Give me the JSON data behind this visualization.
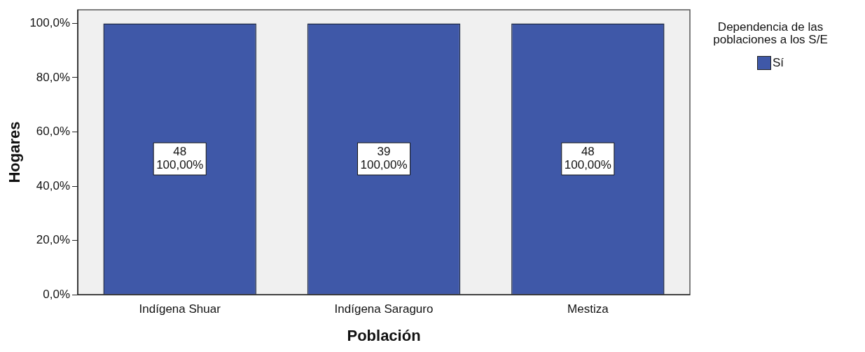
{
  "chart_data": {
    "type": "bar",
    "xlabel": "Población",
    "ylabel": "Hogares",
    "legend_title": "Dependencia de las poblaciones a los S/E",
    "legend": "top right",
    "categories": [
      "Indígena Shuar",
      "Indígena Saraguro",
      "Mestiza"
    ],
    "series": [
      {
        "name": "Sí",
        "color": "#3f58a8",
        "values": [
          100,
          100,
          100
        ],
        "value_labels": [
          "100,00%",
          "100,00%",
          "100,00%"
        ]
      }
    ],
    "annotations": [
      "48",
      "39",
      "48"
    ],
    "ylim": [
      0,
      105
    ],
    "yticks": [
      {
        "value": 0,
        "label": "0,0%"
      },
      {
        "value": 20,
        "label": "20,0%"
      },
      {
        "value": 40,
        "label": "40,0%"
      },
      {
        "value": 60,
        "label": "60,0%"
      },
      {
        "value": 80,
        "label": "80,0%"
      },
      {
        "value": 100,
        "label": "100,0%"
      }
    ],
    "grid": false
  }
}
